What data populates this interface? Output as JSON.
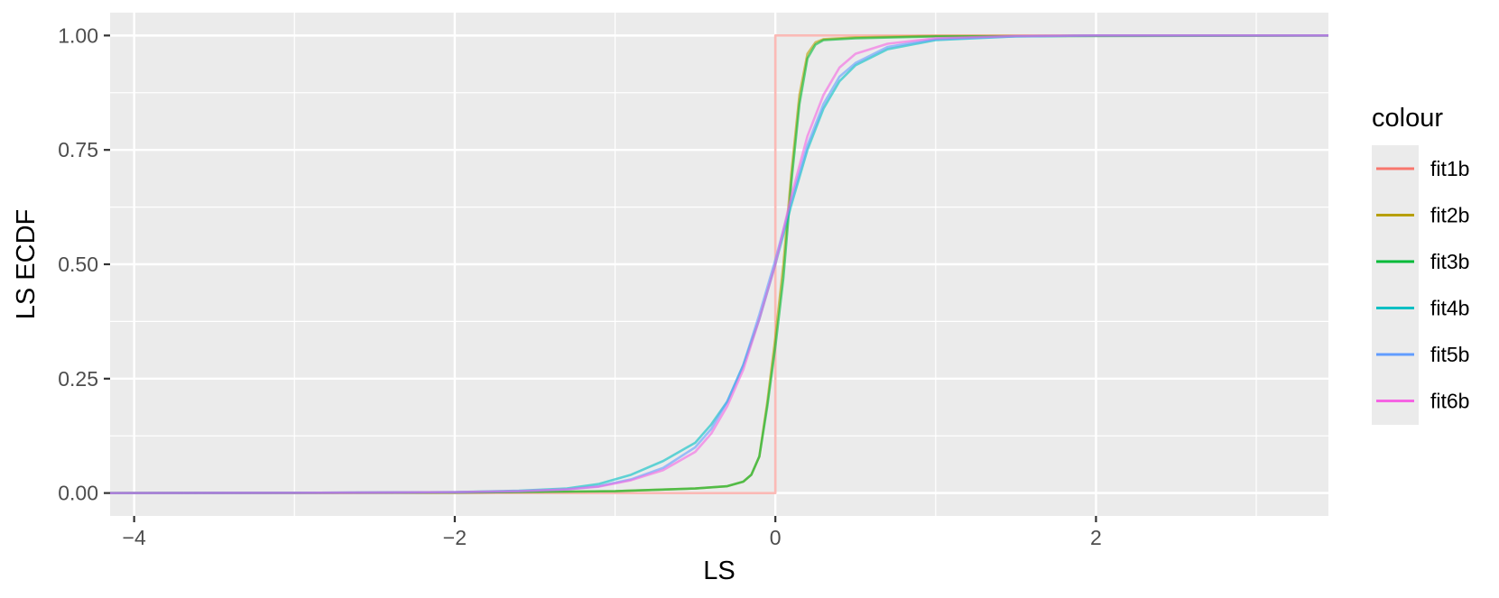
{
  "chart_data": {
    "type": "line",
    "xlabel": "LS",
    "ylabel": "LS ECDF",
    "xlim": [
      -4.15,
      3.45
    ],
    "ylim": [
      -0.05,
      1.05
    ],
    "x_ticks": [
      -4,
      -2,
      0,
      2
    ],
    "x_tick_labels": [
      "−4",
      "−2",
      "0",
      "2"
    ],
    "y_ticks": [
      0,
      0.25,
      0.5,
      0.75,
      1
    ],
    "y_tick_labels": [
      "0.00",
      "0.25",
      "0.50",
      "0.75",
      "1.00"
    ],
    "x_minor_ticks": [
      -3,
      -1,
      1,
      3
    ],
    "y_minor_ticks": [
      0.125,
      0.375,
      0.625,
      0.875
    ],
    "grid": true,
    "panel_background": "#ebebeb",
    "legend": {
      "title": "colour",
      "position": "right"
    },
    "series": [
      {
        "name": "fit1b",
        "color": "#F8766D",
        "opacity": 0.5,
        "points": [
          [
            -4.15,
            0
          ],
          [
            0,
            0
          ],
          [
            0,
            1
          ],
          [
            3.45,
            1
          ]
        ]
      },
      {
        "name": "fit2b",
        "color": "#B79F00",
        "opacity": 0.6,
        "points": [
          [
            -4.15,
            0
          ],
          [
            -2.0,
            0.001
          ],
          [
            -1.0,
            0.004
          ],
          [
            -0.5,
            0.01
          ],
          [
            -0.3,
            0.015
          ],
          [
            -0.2,
            0.025
          ],
          [
            -0.15,
            0.04
          ],
          [
            -0.1,
            0.08
          ],
          [
            -0.05,
            0.2
          ],
          [
            0,
            0.34
          ],
          [
            0.05,
            0.5
          ],
          [
            0.1,
            0.7
          ],
          [
            0.15,
            0.87
          ],
          [
            0.2,
            0.96
          ],
          [
            0.25,
            0.985
          ],
          [
            0.3,
            0.992
          ],
          [
            0.5,
            0.996
          ],
          [
            1.0,
            0.999
          ],
          [
            3.45,
            1
          ]
        ]
      },
      {
        "name": "fit3b",
        "color": "#00BA38",
        "opacity": 0.6,
        "points": [
          [
            -4.15,
            0
          ],
          [
            -2.0,
            0.001
          ],
          [
            -1.0,
            0.004
          ],
          [
            -0.5,
            0.01
          ],
          [
            -0.3,
            0.015
          ],
          [
            -0.2,
            0.025
          ],
          [
            -0.15,
            0.04
          ],
          [
            -0.1,
            0.08
          ],
          [
            -0.05,
            0.19
          ],
          [
            0,
            0.32
          ],
          [
            0.05,
            0.47
          ],
          [
            0.1,
            0.68
          ],
          [
            0.15,
            0.85
          ],
          [
            0.2,
            0.95
          ],
          [
            0.25,
            0.98
          ],
          [
            0.3,
            0.99
          ],
          [
            0.5,
            0.994
          ],
          [
            1.0,
            0.998
          ],
          [
            3.45,
            1
          ]
        ]
      },
      {
        "name": "fit4b",
        "color": "#00BFC4",
        "opacity": 0.6,
        "points": [
          [
            -4.15,
            0
          ],
          [
            -3.0,
            0.0005
          ],
          [
            -2.0,
            0.002
          ],
          [
            -1.6,
            0.005
          ],
          [
            -1.3,
            0.01
          ],
          [
            -1.1,
            0.02
          ],
          [
            -0.9,
            0.04
          ],
          [
            -0.7,
            0.07
          ],
          [
            -0.5,
            0.11
          ],
          [
            -0.4,
            0.15
          ],
          [
            -0.3,
            0.2
          ],
          [
            -0.2,
            0.28
          ],
          [
            -0.1,
            0.38
          ],
          [
            0,
            0.5
          ],
          [
            0.1,
            0.63
          ],
          [
            0.2,
            0.75
          ],
          [
            0.3,
            0.84
          ],
          [
            0.4,
            0.9
          ],
          [
            0.5,
            0.935
          ],
          [
            0.7,
            0.97
          ],
          [
            1.0,
            0.99
          ],
          [
            1.5,
            0.998
          ],
          [
            2.0,
            1
          ],
          [
            3.45,
            1
          ]
        ]
      },
      {
        "name": "fit5b",
        "color": "#619CFF",
        "opacity": 0.6,
        "points": [
          [
            -4.15,
            0
          ],
          [
            -3.0,
            0.0005
          ],
          [
            -2.0,
            0.002
          ],
          [
            -1.6,
            0.004
          ],
          [
            -1.3,
            0.008
          ],
          [
            -1.1,
            0.015
          ],
          [
            -0.9,
            0.03
          ],
          [
            -0.7,
            0.055
          ],
          [
            -0.5,
            0.1
          ],
          [
            -0.4,
            0.14
          ],
          [
            -0.3,
            0.2
          ],
          [
            -0.2,
            0.28
          ],
          [
            -0.1,
            0.39
          ],
          [
            0,
            0.51
          ],
          [
            0.1,
            0.64
          ],
          [
            0.2,
            0.76
          ],
          [
            0.3,
            0.85
          ],
          [
            0.4,
            0.91
          ],
          [
            0.5,
            0.94
          ],
          [
            0.7,
            0.975
          ],
          [
            1.0,
            0.992
          ],
          [
            1.5,
            0.998
          ],
          [
            2.0,
            1
          ],
          [
            3.45,
            1
          ]
        ]
      },
      {
        "name": "fit6b",
        "color": "#F564E3",
        "opacity": 0.6,
        "points": [
          [
            -4.15,
            0
          ],
          [
            -3.0,
            0.0005
          ],
          [
            -2.0,
            0.002
          ],
          [
            -1.6,
            0.004
          ],
          [
            -1.3,
            0.008
          ],
          [
            -1.1,
            0.014
          ],
          [
            -0.9,
            0.028
          ],
          [
            -0.7,
            0.05
          ],
          [
            -0.5,
            0.09
          ],
          [
            -0.4,
            0.13
          ],
          [
            -0.3,
            0.19
          ],
          [
            -0.2,
            0.27
          ],
          [
            -0.1,
            0.38
          ],
          [
            0,
            0.5
          ],
          [
            0.1,
            0.65
          ],
          [
            0.2,
            0.78
          ],
          [
            0.3,
            0.87
          ],
          [
            0.4,
            0.93
          ],
          [
            0.5,
            0.96
          ],
          [
            0.7,
            0.982
          ],
          [
            1.0,
            0.994
          ],
          [
            1.5,
            0.999
          ],
          [
            2.0,
            1
          ],
          [
            3.45,
            1
          ]
        ]
      }
    ]
  }
}
